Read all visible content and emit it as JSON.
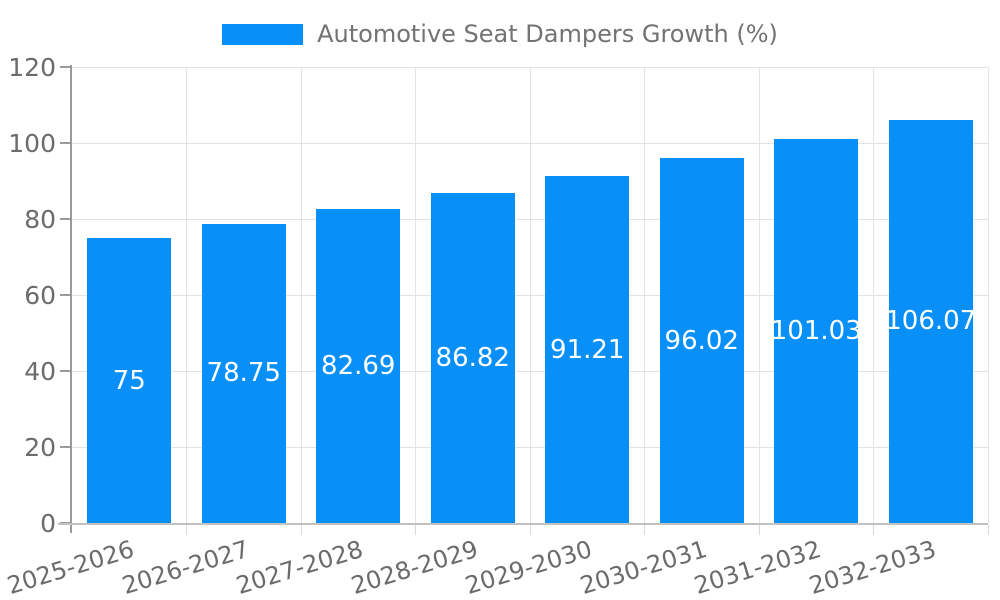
{
  "chart": {
    "legend": {
      "label": "Automotive Seat Dampers Growth (%)"
    }
  },
  "chart_data": {
    "type": "bar",
    "title": "Automotive Seat Dampers Growth (%)",
    "legend_entries": [
      "Automotive Seat Dampers Growth (%)"
    ],
    "legend_position": "top-center",
    "categories": [
      "2025-2026",
      "2026-2027",
      "2027-2028",
      "2028-2029",
      "2029-2030",
      "2030-2031",
      "2031-2032",
      "2032-2033"
    ],
    "values": [
      75,
      78.75,
      82.69,
      86.82,
      91.21,
      96.02,
      101.03,
      106.07
    ],
    "value_labels": [
      "75",
      "78.75",
      "82.69",
      "86.82",
      "91.21",
      "96.02",
      "101.03",
      "106.07"
    ],
    "xlabel": "",
    "ylabel": "",
    "ylim": [
      0,
      120
    ],
    "yticks": [
      0,
      20,
      40,
      60,
      80,
      100,
      120
    ],
    "grid": true,
    "colors": {
      "bar": "#0990f8",
      "value_label": "#ffffff",
      "gridline": "#e4e4e4",
      "y_axis": "#9a9a9a",
      "x_axis": "#c2c2c2",
      "tick_text": "#6b6b6b",
      "legend_text": "#737373",
      "background": "#ffffff"
    }
  }
}
